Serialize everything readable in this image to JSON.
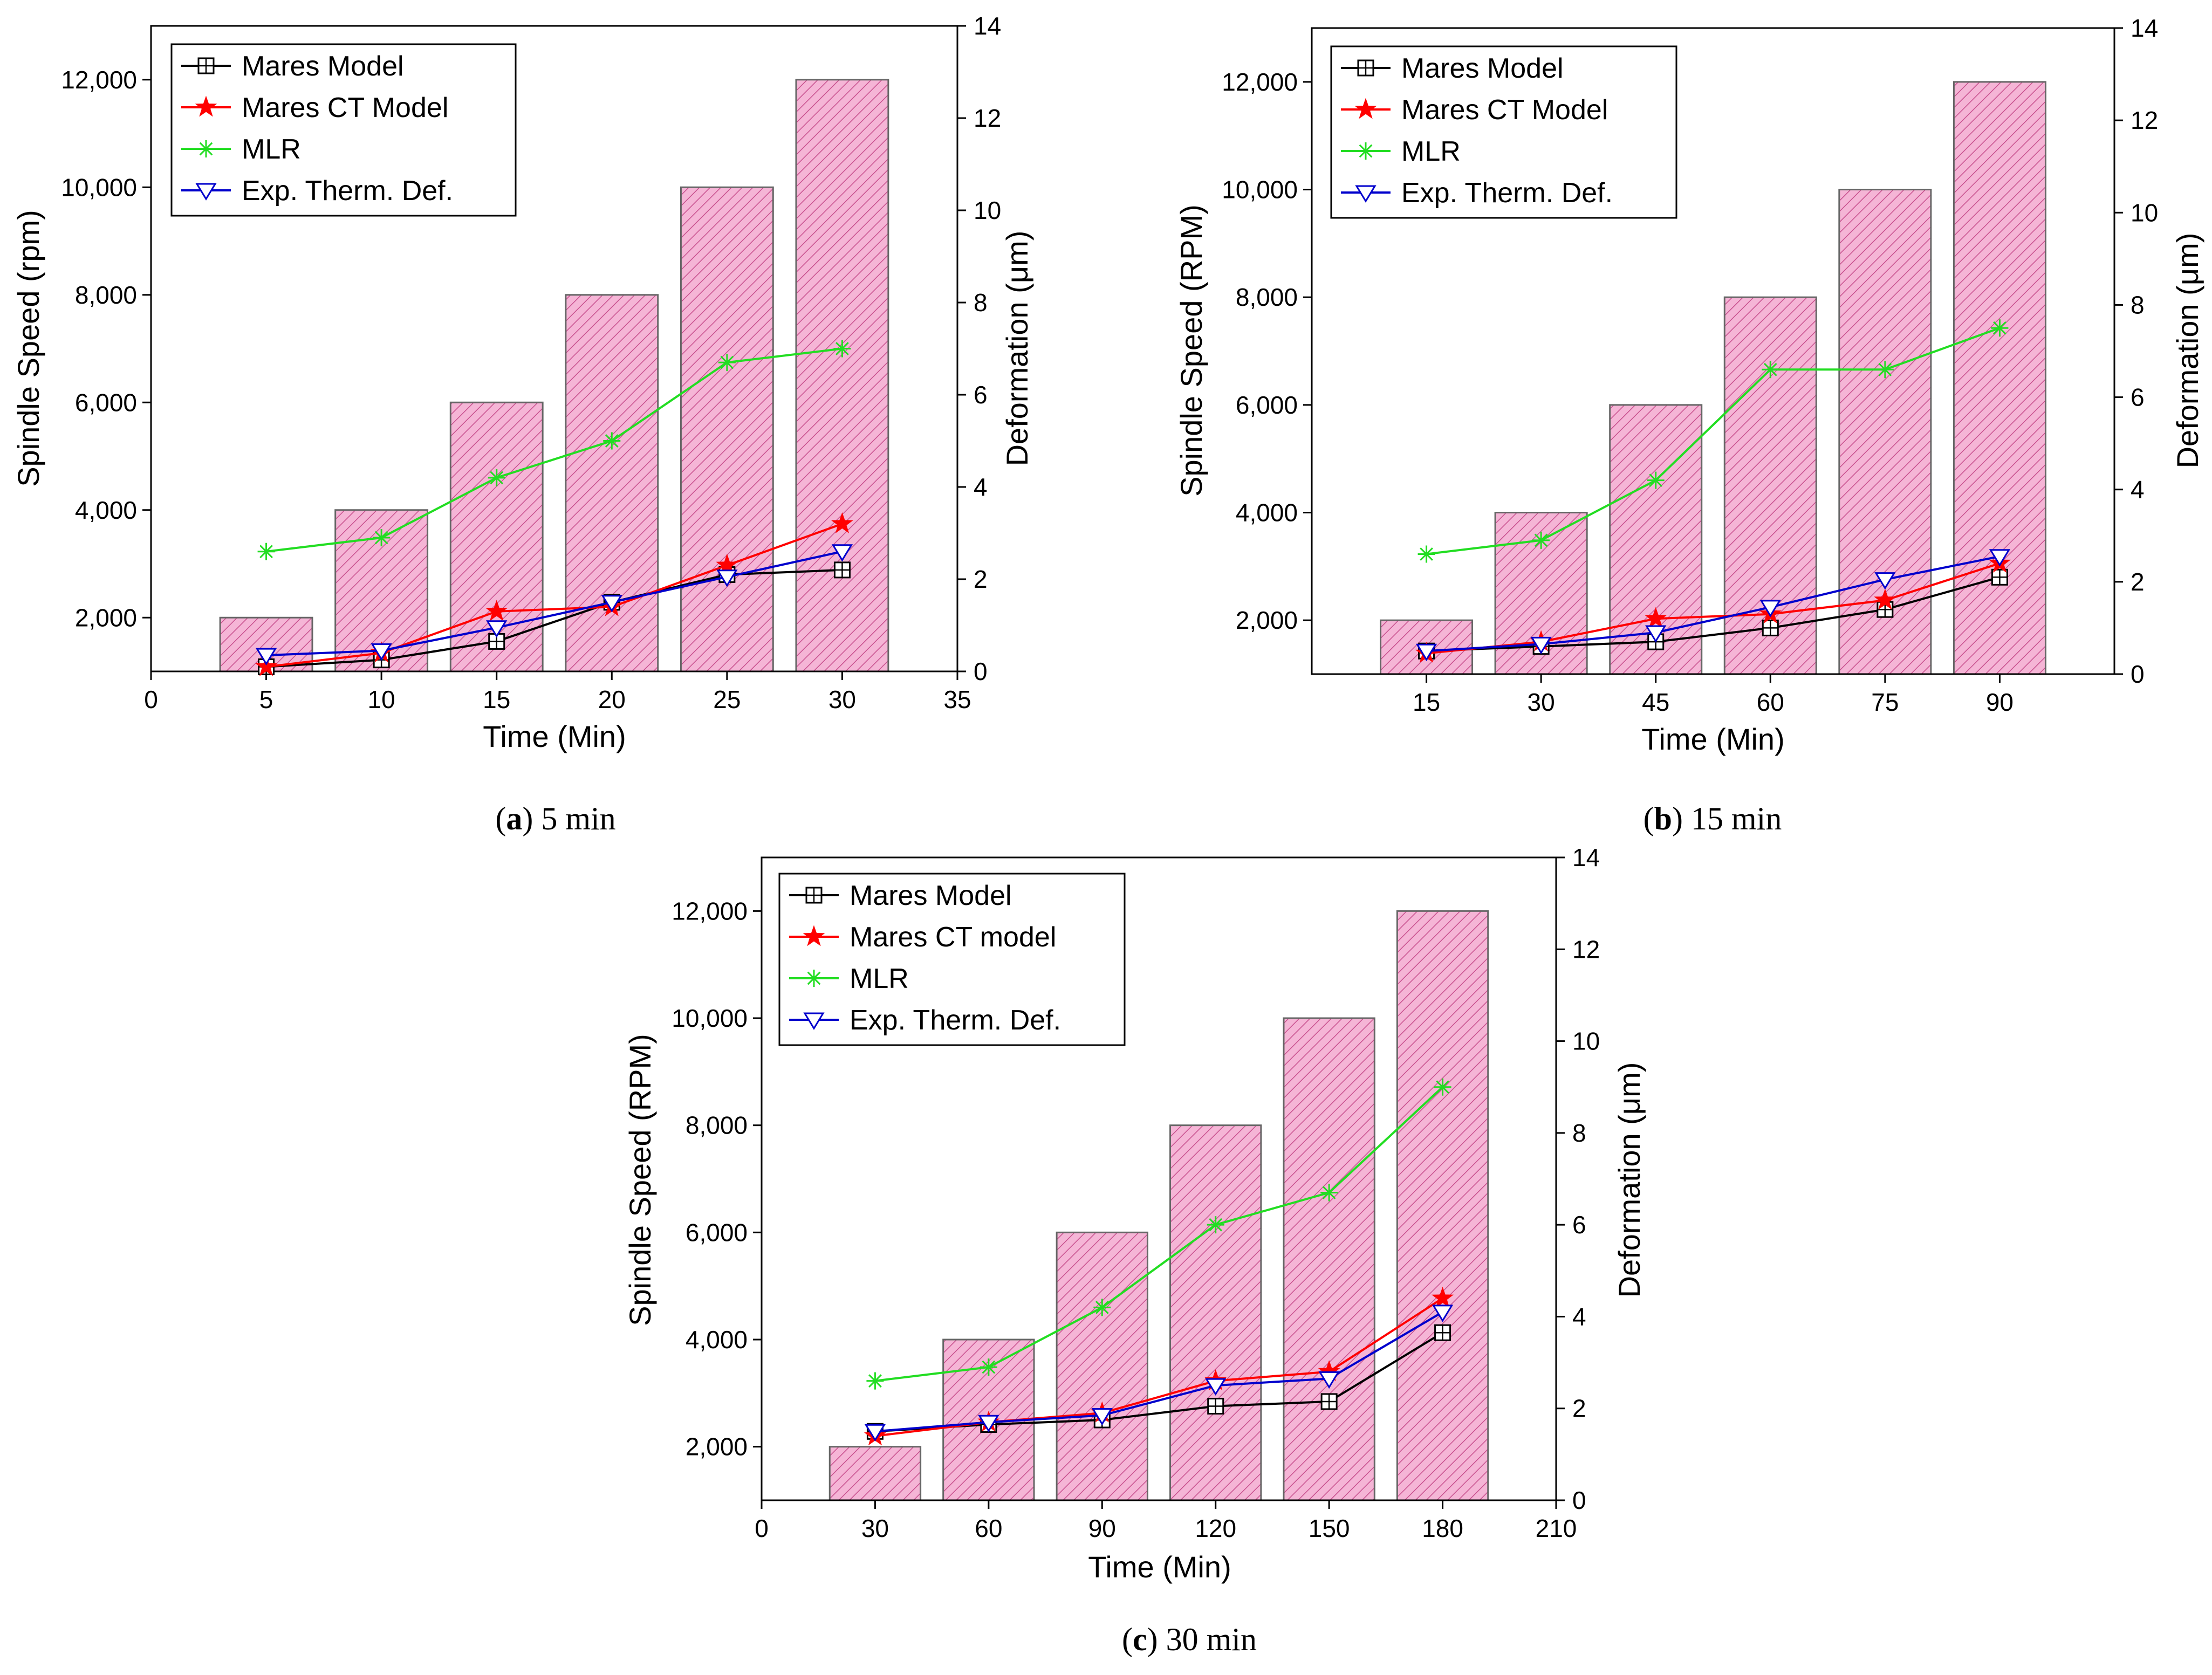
{
  "chart_data": [
    {
      "type": "bar+line",
      "caption_label": "a",
      "caption_text": "5 min",
      "xlabel": "Time (Min)",
      "ylabel": "Spindle Speed (rpm)",
      "ylabel_right": "Deformation (μm)",
      "xlim": [
        0,
        35
      ],
      "xticks": [
        "0",
        "5",
        "10",
        "15",
        "20",
        "25",
        "30",
        "35"
      ],
      "ylim": [
        1000,
        13000
      ],
      "yticks": [
        "2,000",
        "4,000",
        "6,000",
        "8,000",
        "10,000",
        "12,000"
      ],
      "ylim_right": [
        0,
        14
      ],
      "yticks_right": [
        "0",
        "2",
        "4",
        "6",
        "8",
        "10",
        "12",
        "14"
      ],
      "x": [
        5,
        10,
        15,
        20,
        25,
        30
      ],
      "bar_values": [
        2000,
        4000,
        6000,
        8000,
        10000,
        12000
      ],
      "series": [
        {
          "name": "Mares Model",
          "color": "#000000",
          "marker": "square-plus",
          "values": [
            0.1,
            0.25,
            0.65,
            1.5,
            2.1,
            2.2
          ]
        },
        {
          "name": "Mares CT Model",
          "color": "#ff0000",
          "marker": "star",
          "values": [
            0.1,
            0.4,
            1.3,
            1.4,
            2.3,
            3.2
          ]
        },
        {
          "name": "MLR",
          "color": "#22dd22",
          "marker": "asterisk",
          "values": [
            2.6,
            2.9,
            4.2,
            5.0,
            6.7,
            7.0
          ]
        },
        {
          "name": "Exp. Therm. Def.",
          "color": "#0000cc",
          "marker": "triangle-down",
          "values": [
            0.35,
            0.45,
            0.95,
            1.5,
            2.05,
            2.6
          ]
        }
      ]
    },
    {
      "type": "bar+line",
      "caption_label": "b",
      "caption_text": "15 min",
      "xlabel": "Time (Min)",
      "ylabel": "Spindle Speed (RPM)",
      "ylabel_right": "Deformation (μm)",
      "xlim": [
        0,
        105
      ],
      "xticks": [
        "15",
        "30",
        "45",
        "60",
        "75",
        "90"
      ],
      "ylim": [
        1000,
        13000
      ],
      "yticks": [
        "2,000",
        "4,000",
        "6,000",
        "8,000",
        "10,000",
        "12,000"
      ],
      "ylim_right": [
        0,
        14
      ],
      "yticks_right": [
        "0",
        "2",
        "4",
        "6",
        "8",
        "10",
        "12",
        "14"
      ],
      "x": [
        15,
        30,
        45,
        60,
        75,
        90
      ],
      "bar_values": [
        2000,
        4000,
        6000,
        8000,
        10000,
        12000
      ],
      "series": [
        {
          "name": "Mares Model",
          "color": "#000000",
          "marker": "square-plus",
          "values": [
            0.5,
            0.6,
            0.7,
            1.0,
            1.4,
            2.1
          ]
        },
        {
          "name": "Mares CT Model",
          "color": "#ff0000",
          "marker": "star",
          "values": [
            0.45,
            0.7,
            1.2,
            1.3,
            1.6,
            2.4
          ]
        },
        {
          "name": "MLR",
          "color": "#22dd22",
          "marker": "asterisk",
          "values": [
            2.6,
            2.9,
            4.2,
            6.6,
            6.6,
            7.5
          ]
        },
        {
          "name": "Exp. Therm. Def.",
          "color": "#0000cc",
          "marker": "triangle-down",
          "values": [
            0.5,
            0.65,
            0.9,
            1.45,
            2.05,
            2.55
          ]
        }
      ]
    },
    {
      "type": "bar+line",
      "caption_label": "c",
      "caption_text": "30 min",
      "xlabel": "Time (Min)",
      "ylabel": "Spindle Speed (RPM)",
      "ylabel_right": "Deformation (μm)",
      "xlim": [
        0,
        210
      ],
      "xticks": [
        "0",
        "30",
        "60",
        "90",
        "120",
        "150",
        "180",
        "210"
      ],
      "ylim": [
        1000,
        13000
      ],
      "yticks": [
        "2,000",
        "4,000",
        "6,000",
        "8,000",
        "10,000",
        "12,000"
      ],
      "ylim_right": [
        0,
        14
      ],
      "yticks_right": [
        "0",
        "2",
        "4",
        "6",
        "8",
        "10",
        "12",
        "14"
      ],
      "x": [
        30,
        60,
        90,
        120,
        150,
        180
      ],
      "bar_values": [
        2000,
        4000,
        6000,
        8000,
        10000,
        12000
      ],
      "series": [
        {
          "name": "Mares Model",
          "color": "#000000",
          "marker": "square-plus",
          "values": [
            1.5,
            1.65,
            1.75,
            2.05,
            2.15,
            3.65
          ]
        },
        {
          "name": "Mares CT model",
          "color": "#ff0000",
          "marker": "star",
          "values": [
            1.4,
            1.7,
            1.9,
            2.6,
            2.8,
            4.4
          ]
        },
        {
          "name": "MLR",
          "color": "#22dd22",
          "marker": "asterisk",
          "values": [
            2.6,
            2.9,
            4.2,
            6.0,
            6.7,
            9.0
          ]
        },
        {
          "name": "Exp. Therm. Def.",
          "color": "#0000cc",
          "marker": "triangle-down",
          "values": [
            1.5,
            1.7,
            1.85,
            2.5,
            2.65,
            4.1
          ]
        }
      ]
    }
  ],
  "bar_style": {
    "fill": "#f5b5d6",
    "hatch": "#c8508e",
    "stroke": "#666666"
  }
}
